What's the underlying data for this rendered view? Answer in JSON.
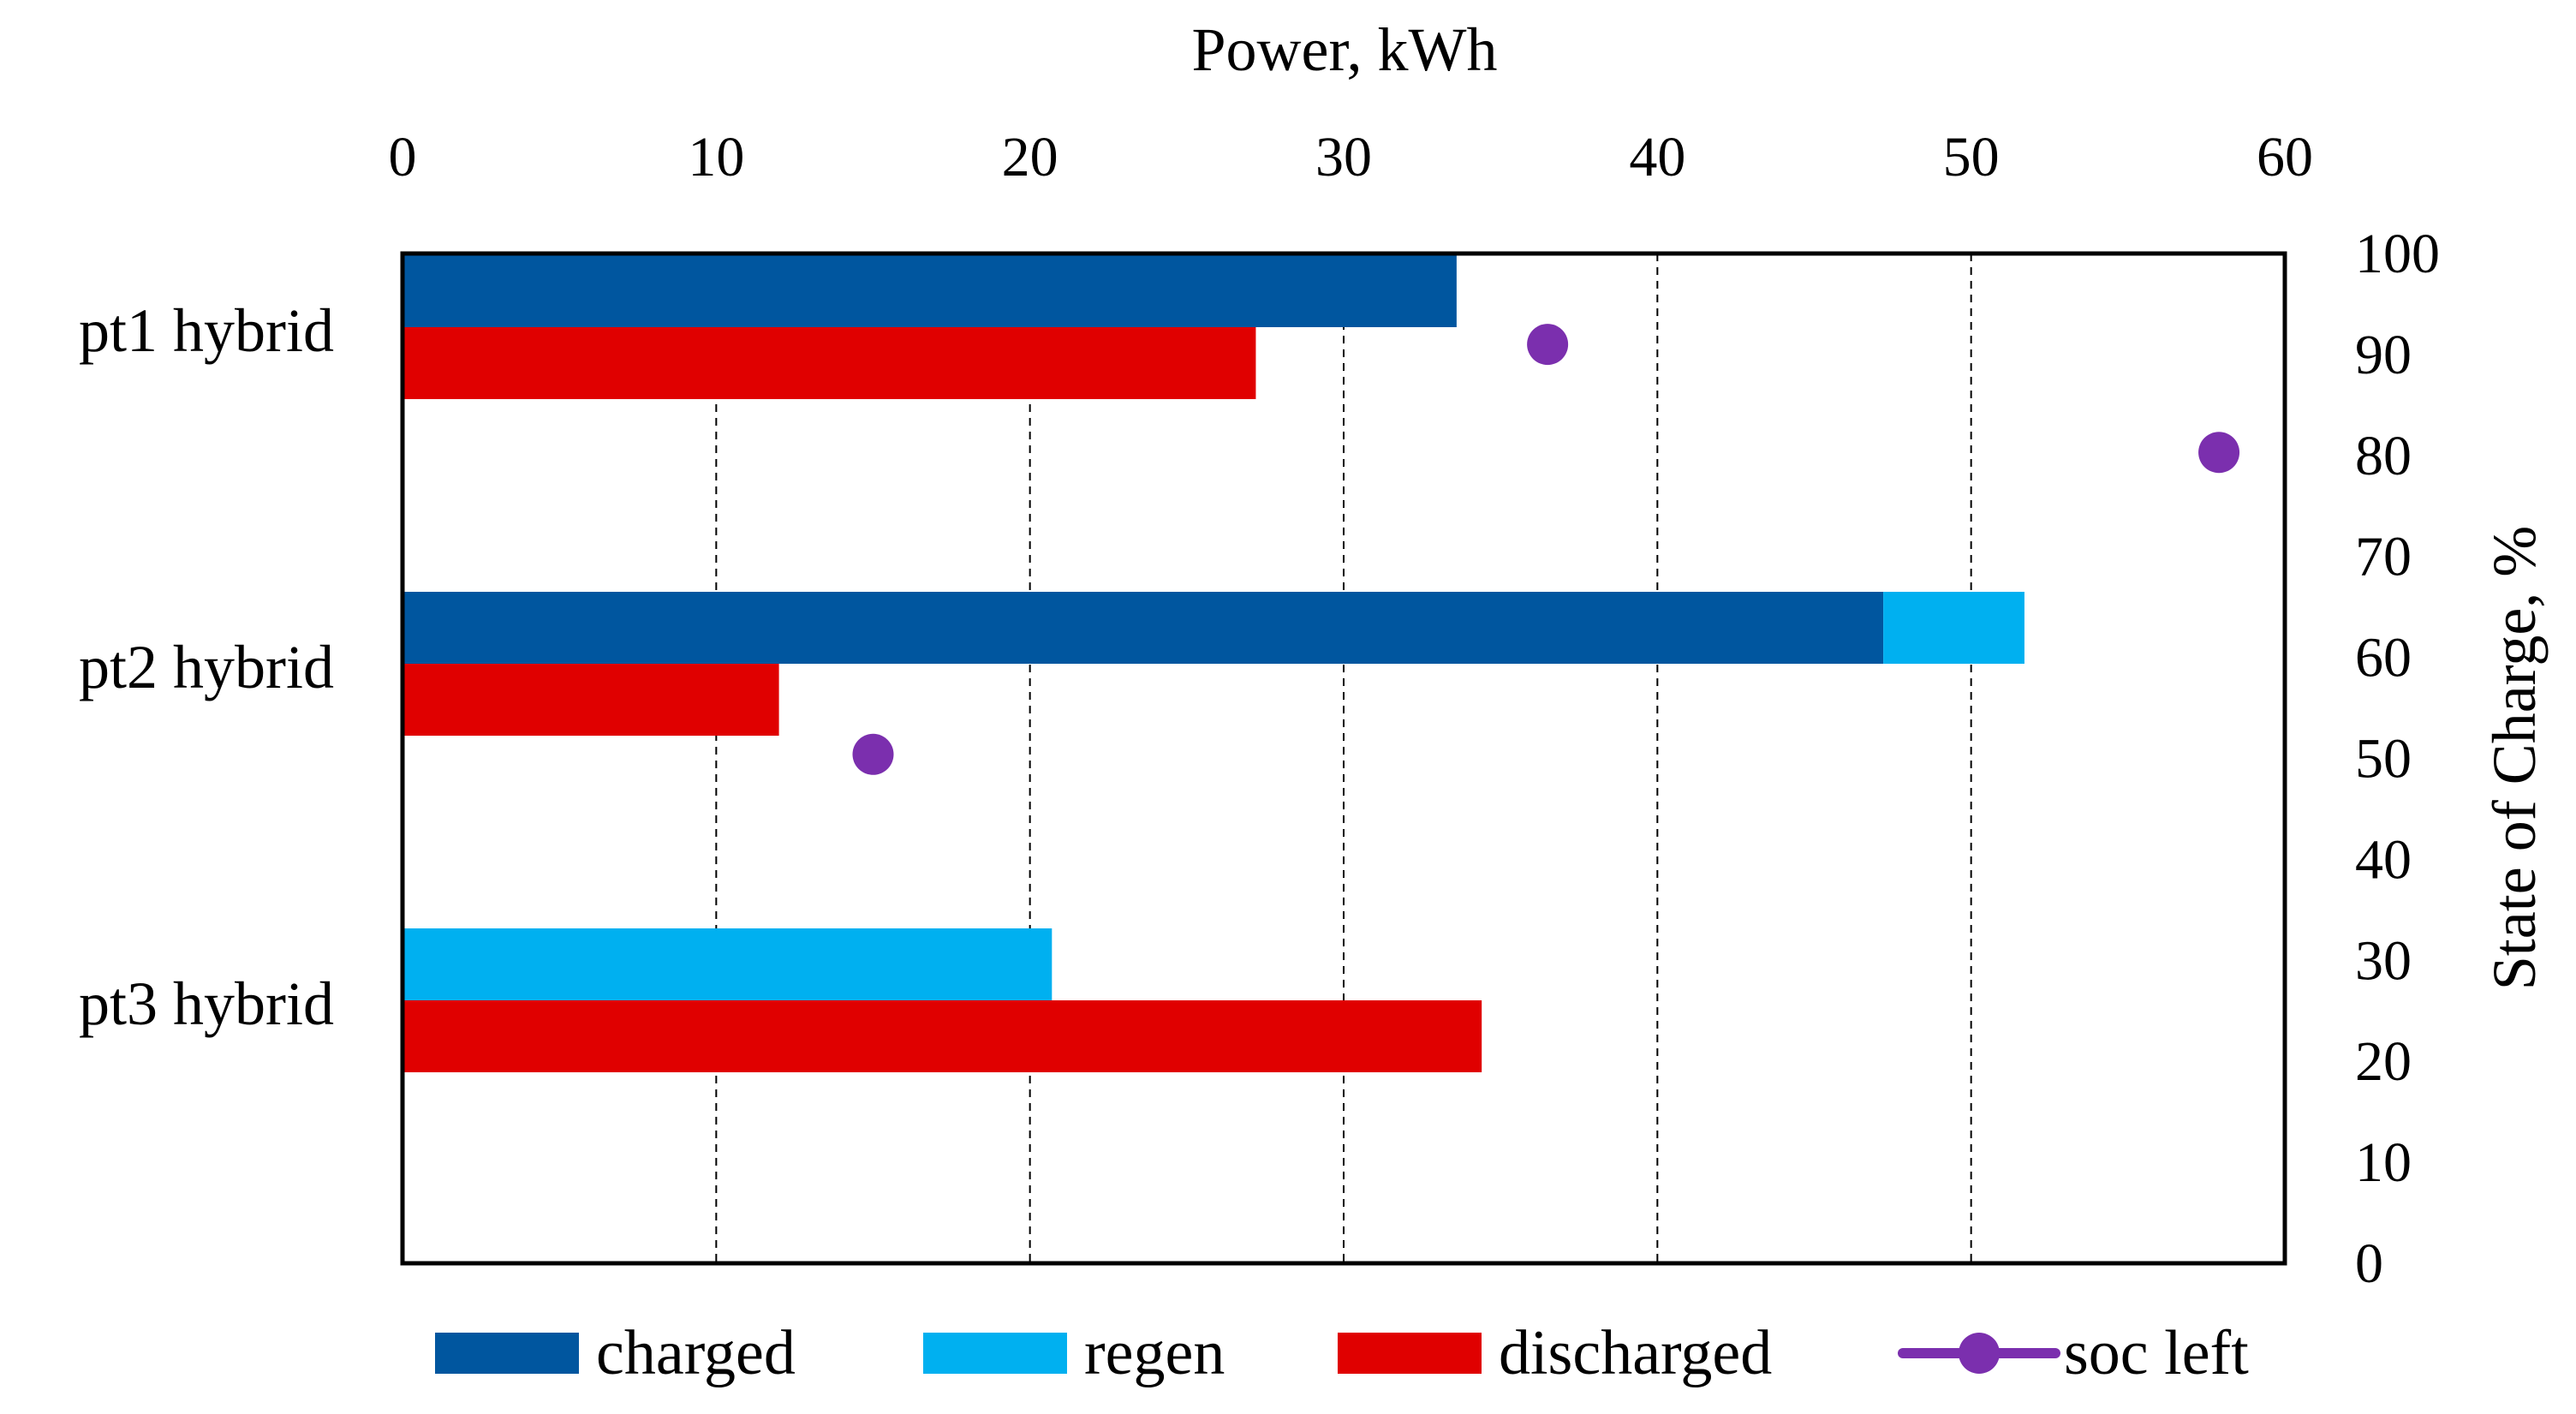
{
  "chart_data": {
    "type": "bar",
    "orientation": "horizontal",
    "categories": [
      "pt1 hybrid",
      "pt2 hybrid",
      "pt3 hybrid"
    ],
    "x_axis": {
      "title": "Power, kWh",
      "position": "top",
      "min": 0,
      "max": 60,
      "step": 10,
      "ticks": [
        "0",
        "10",
        "20",
        "30",
        "40",
        "50",
        "60"
      ]
    },
    "y2_axis": {
      "title": "State of Charge, %",
      "position": "right",
      "min": 0,
      "max": 100,
      "step": 10,
      "ticks": [
        "0",
        "10",
        "20",
        "30",
        "40",
        "50",
        "60",
        "70",
        "80",
        "90",
        "100"
      ]
    },
    "series": [
      {
        "name": "charged",
        "type": "bar",
        "color": "#00569F",
        "values": [
          33.6,
          47.2,
          0
        ]
      },
      {
        "name": "regen",
        "type": "bar",
        "color": "#00B0F0",
        "values": [
          0,
          4.5,
          20.7
        ]
      },
      {
        "name": "discharged",
        "type": "bar",
        "color": "#E00000",
        "values": [
          27.2,
          12.0,
          34.4
        ]
      },
      {
        "name": "soc left",
        "type": "scatter",
        "axis": "y2",
        "color": "#7B2FAE",
        "points": [
          {
            "power": 36.5,
            "soc": 91
          },
          {
            "power": 57.9,
            "soc": 80.3
          },
          {
            "power": 15.0,
            "soc": 50.4
          }
        ]
      }
    ],
    "grid": "vertical-dashed",
    "legend": "bottom"
  }
}
